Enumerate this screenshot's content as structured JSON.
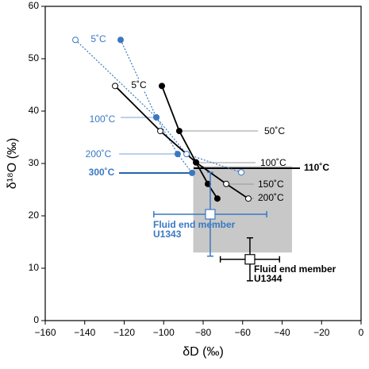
{
  "chart_data": {
    "type": "scatter",
    "xlabel": "δD (‰)",
    "ylabel": "δ¹⁸O (‰)",
    "xlim": [
      -160,
      0
    ],
    "ylim": [
      0,
      60
    ],
    "xticks": [
      {
        "value": -160,
        "label": "−160"
      },
      {
        "value": -140,
        "label": "−140"
      },
      {
        "value": -120,
        "label": "−120"
      },
      {
        "value": -100,
        "label": "−100"
      },
      {
        "value": -80,
        "label": "−80"
      },
      {
        "value": -60,
        "label": "−60"
      },
      {
        "value": -40,
        "label": "−40"
      },
      {
        "value": -20,
        "label": "−20"
      },
      0
    ],
    "yticks": [
      0,
      10,
      20,
      30,
      40,
      50,
      60
    ],
    "box": {
      "x0": -85,
      "x1": -35,
      "y0": 13,
      "y1": 29.5,
      "color": "#c8c8c8"
    },
    "series": [
      {
        "color": "#3a78c2",
        "marker": "open",
        "line": "dotted",
        "x": [
          -144.7,
          -103.7,
          -88.4,
          -60.7
        ],
        "y": [
          53.6,
          38.8,
          31.8,
          28.3
        ]
      },
      {
        "color": "#3a78c2",
        "marker": "filled",
        "line": "dotted",
        "x": [
          -121.8,
          -103.7,
          -92.9,
          -85.6
        ],
        "y": [
          53.6,
          38.8,
          31.8,
          28.2
        ]
      },
      {
        "color": "#000000",
        "marker": "open",
        "line": "solid",
        "x": [
          -124.6,
          -101.7,
          -83.6,
          -68.3,
          -57.1
        ],
        "y": [
          44.8,
          36.2,
          30.2,
          26.1,
          23.3
        ]
      },
      {
        "color": "#000000",
        "marker": "filled",
        "line": "solid",
        "x": [
          -100.9,
          -92.1,
          -83.6,
          -77.6,
          -72.8
        ],
        "y": [
          44.8,
          36.2,
          30.2,
          26.1,
          23.3
        ]
      }
    ],
    "points": [
      {
        "x": -76.4,
        "y": 20.3,
        "xerr": 28.6,
        "yerr": 8,
        "color": "#3a78c2",
        "label": [
          "Fluid end member",
          "U1343"
        ]
      },
      {
        "x": -56.3,
        "y": 11.7,
        "xerr": 15,
        "yerr": 4.1,
        "color": "#000000",
        "label": [
          "Fluid end member",
          "U1344"
        ]
      }
    ],
    "annotations": [
      {
        "text": "5˚C",
        "color": "#3a78c2"
      },
      {
        "text": "5˚C",
        "color": "#000000"
      },
      {
        "text": "100˚C",
        "color": "#3a78c2"
      },
      {
        "text": "200˚C",
        "color": "#3a78c2"
      },
      {
        "text": "300˚C",
        "color": "#3a78c2"
      },
      {
        "text": "50˚C",
        "color": "#000000"
      },
      {
        "text": "100˚C",
        "color": "#000000"
      },
      {
        "text": "110˚C",
        "color": "#000000"
      },
      {
        "text": "150˚C",
        "color": "#000000"
      },
      {
        "text": "200˚C",
        "color": "#000000"
      }
    ]
  }
}
